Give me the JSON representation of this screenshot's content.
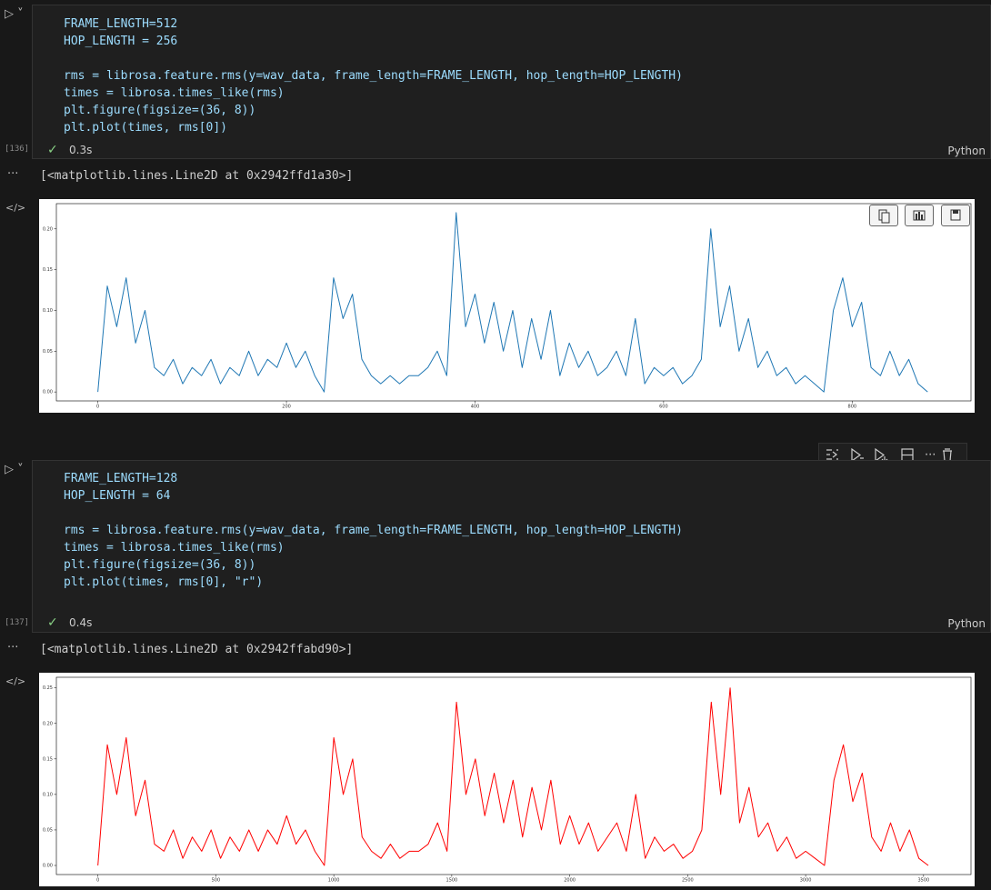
{
  "cells": [
    {
      "execution_count": "[136]",
      "code": [
        [
          "FRAME_LENGTH=512",
          "HOP_LENGTH = 256"
        ],
        [
          "rms = librosa.feature.rms(y=wav_data, frame_length=FRAME_LENGTH, hop_length=HOP_LENGTH)",
          "times = librosa.times_like(rms)",
          "plt.figure(figsize=(36, 8))",
          "plt.plot(times, rms[0])"
        ]
      ],
      "status": "0.3s",
      "language": "Python",
      "output": "[<matplotlib.lines.Line2D at 0x2942ffd1a30>]"
    },
    {
      "execution_count": "[137]",
      "code": [
        [
          "FRAME_LENGTH=128",
          "HOP_LENGTH = 64"
        ],
        [
          "rms = librosa.feature.rms(y=wav_data, frame_length=FRAME_LENGTH, hop_length=HOP_LENGTH)",
          "times = librosa.times_like(rms)",
          "plt.figure(figsize=(36, 8))",
          "plt.plot(times, rms[0], \"r\")"
        ]
      ],
      "status": "0.4s",
      "language": "Python",
      "output": "[<matplotlib.lines.Line2D at 0x2942ffabd90>]"
    }
  ],
  "chart_data": [
    {
      "type": "line",
      "color": "#1f77b4",
      "x": [
        0,
        10,
        20,
        30,
        40,
        50,
        60,
        70,
        80,
        90,
        100,
        110,
        120,
        130,
        140,
        150,
        160,
        170,
        180,
        190,
        200,
        210,
        220,
        230,
        240,
        250,
        260,
        270,
        280,
        290,
        300,
        310,
        320,
        330,
        340,
        350,
        360,
        370,
        380,
        390,
        400,
        410,
        420,
        430,
        440,
        450,
        460,
        470,
        480,
        490,
        500,
        510,
        520,
        530,
        540,
        550,
        560,
        570,
        580,
        590,
        600,
        610,
        620,
        630,
        640,
        650,
        660,
        670,
        680,
        690,
        700,
        710,
        720,
        730,
        740,
        750,
        760,
        770,
        780,
        790,
        800,
        810,
        820,
        830,
        840,
        850,
        860,
        870,
        880
      ],
      "values": [
        0.0,
        0.13,
        0.08,
        0.14,
        0.06,
        0.1,
        0.03,
        0.02,
        0.04,
        0.01,
        0.03,
        0.02,
        0.04,
        0.01,
        0.03,
        0.02,
        0.05,
        0.02,
        0.04,
        0.03,
        0.06,
        0.03,
        0.05,
        0.02,
        0.0,
        0.14,
        0.09,
        0.12,
        0.04,
        0.02,
        0.01,
        0.02,
        0.01,
        0.02,
        0.02,
        0.03,
        0.05,
        0.02,
        0.22,
        0.08,
        0.12,
        0.06,
        0.11,
        0.05,
        0.1,
        0.03,
        0.09,
        0.04,
        0.1,
        0.02,
        0.06,
        0.03,
        0.05,
        0.02,
        0.03,
        0.05,
        0.02,
        0.09,
        0.01,
        0.03,
        0.02,
        0.03,
        0.01,
        0.02,
        0.04,
        0.2,
        0.08,
        0.13,
        0.05,
        0.09,
        0.03,
        0.05,
        0.02,
        0.03,
        0.01,
        0.02,
        0.01,
        0.0,
        0.1,
        0.14,
        0.08,
        0.11,
        0.03,
        0.02,
        0.05,
        0.02,
        0.04,
        0.01,
        0.0
      ],
      "xlim": [
        -44,
        926
      ],
      "xticks": [
        0,
        200,
        400,
        600,
        800
      ],
      "ylim": [
        -0.011,
        0.231
      ],
      "yticks": [
        {
          "value": 0,
          "label": "0.00"
        },
        {
          "value": 0.05,
          "label": "0.05"
        },
        {
          "value": 0.1,
          "label": "0.10"
        },
        {
          "value": 0.15,
          "label": "0.15"
        },
        {
          "value": 0.2,
          "label": "0.20"
        }
      ]
    },
    {
      "type": "line",
      "color": "#ff0000",
      "x": [
        0,
        40,
        80,
        120,
        160,
        200,
        240,
        280,
        320,
        360,
        400,
        440,
        480,
        520,
        560,
        600,
        640,
        680,
        720,
        760,
        800,
        840,
        880,
        920,
        960,
        1000,
        1040,
        1080,
        1120,
        1160,
        1200,
        1240,
        1280,
        1320,
        1360,
        1400,
        1440,
        1480,
        1520,
        1560,
        1600,
        1640,
        1680,
        1720,
        1760,
        1800,
        1840,
        1880,
        1920,
        1960,
        2000,
        2040,
        2080,
        2120,
        2160,
        2200,
        2240,
        2280,
        2320,
        2360,
        2400,
        2440,
        2480,
        2520,
        2560,
        2600,
        2640,
        2680,
        2720,
        2760,
        2800,
        2840,
        2880,
        2920,
        2960,
        3000,
        3040,
        3080,
        3120,
        3160,
        3200,
        3240,
        3280,
        3320,
        3360,
        3400,
        3440,
        3480,
        3520
      ],
      "values": [
        0.0,
        0.17,
        0.1,
        0.18,
        0.07,
        0.12,
        0.03,
        0.02,
        0.05,
        0.01,
        0.04,
        0.02,
        0.05,
        0.01,
        0.04,
        0.02,
        0.05,
        0.02,
        0.05,
        0.03,
        0.07,
        0.03,
        0.05,
        0.02,
        0.0,
        0.18,
        0.1,
        0.15,
        0.04,
        0.02,
        0.01,
        0.03,
        0.01,
        0.02,
        0.02,
        0.03,
        0.06,
        0.02,
        0.23,
        0.1,
        0.15,
        0.07,
        0.13,
        0.06,
        0.12,
        0.04,
        0.11,
        0.05,
        0.12,
        0.03,
        0.07,
        0.03,
        0.06,
        0.02,
        0.04,
        0.06,
        0.02,
        0.1,
        0.01,
        0.04,
        0.02,
        0.03,
        0.01,
        0.02,
        0.05,
        0.23,
        0.1,
        0.25,
        0.06,
        0.11,
        0.04,
        0.06,
        0.02,
        0.04,
        0.01,
        0.02,
        0.01,
        0.0,
        0.12,
        0.17,
        0.09,
        0.13,
        0.04,
        0.02,
        0.06,
        0.02,
        0.05,
        0.01,
        0.0
      ],
      "xlim": [
        -176,
        3701
      ],
      "xticks": [
        0,
        500,
        1000,
        1500,
        2000,
        2500,
        3000,
        3500
      ],
      "ylim": [
        -0.0128,
        0.265
      ],
      "yticks": [
        {
          "value": 0,
          "label": "0.00"
        },
        {
          "value": 0.05,
          "label": "0.05"
        },
        {
          "value": 0.1,
          "label": "0.10"
        },
        {
          "value": 0.15,
          "label": "0.15"
        },
        {
          "value": 0.2,
          "label": "0.20"
        },
        {
          "value": 0.25,
          "label": "0.25"
        }
      ]
    }
  ]
}
